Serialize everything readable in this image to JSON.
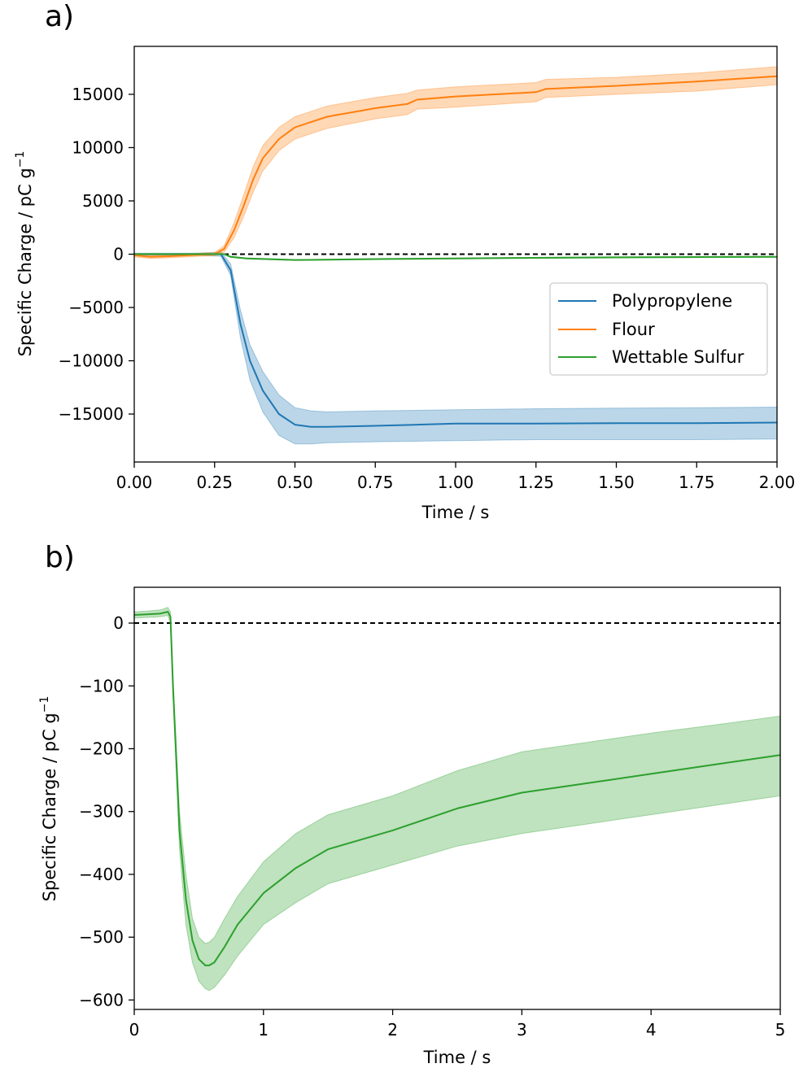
{
  "chart_data": [
    {
      "panel_label": "a)",
      "type": "line",
      "xlabel": "Time / s",
      "ylabel": "Specific Charge / pC g",
      "ylabel_sup": "−1",
      "xlim": [
        0,
        2
      ],
      "ylim": [
        -19500,
        19500
      ],
      "xticks": [
        0,
        0.25,
        0.5,
        0.75,
        1.0,
        1.25,
        1.5,
        1.75,
        2.0
      ],
      "xtick_labels": [
        "0.00",
        "0.25",
        "0.50",
        "0.75",
        "1.00",
        "1.25",
        "1.50",
        "1.75",
        "2.00"
      ],
      "yticks": [
        15000,
        10000,
        5000,
        0,
        -5000,
        -10000,
        -15000
      ],
      "ytick_labels": [
        "15000",
        "10000",
        "5000",
        "0",
        "−5000",
        "−10000",
        "−15000"
      ],
      "reference_line": {
        "y": 0,
        "style": "dashed",
        "color": "#000000"
      },
      "legend": {
        "placement": "center-right"
      },
      "series": [
        {
          "name": "Polypropylene",
          "color": "#1f77b4",
          "x": [
            0,
            0.1,
            0.2,
            0.27,
            0.3,
            0.33,
            0.36,
            0.4,
            0.45,
            0.5,
            0.55,
            0.6,
            0.75,
            1.0,
            1.25,
            1.5,
            1.75,
            2.0
          ],
          "y": [
            0,
            0,
            0,
            0,
            -1500,
            -6500,
            -10000,
            -12800,
            -15000,
            -16000,
            -16200,
            -16200,
            -16100,
            -15900,
            -15900,
            -15850,
            -15850,
            -15800
          ],
          "lower": [
            -100,
            -100,
            -100,
            -200,
            -2000,
            -7800,
            -11800,
            -14800,
            -17000,
            -17800,
            -17800,
            -17700,
            -17600,
            -17500,
            -17400,
            -17400,
            -17400,
            -17350
          ],
          "upper": [
            100,
            100,
            100,
            200,
            -900,
            -5200,
            -8500,
            -11000,
            -13200,
            -14400,
            -14700,
            -14800,
            -14700,
            -14600,
            -14500,
            -14450,
            -14400,
            -14350
          ]
        },
        {
          "name": "Flour",
          "color": "#ff7f0e",
          "x": [
            0,
            0.05,
            0.1,
            0.2,
            0.25,
            0.28,
            0.31,
            0.34,
            0.37,
            0.4,
            0.45,
            0.5,
            0.6,
            0.75,
            0.85,
            0.88,
            1.0,
            1.25,
            1.28,
            1.5,
            1.75,
            2.0
          ],
          "y": [
            -100,
            -250,
            -200,
            -50,
            0,
            500,
            2200,
            4500,
            7000,
            9000,
            10800,
            11900,
            12900,
            13700,
            14100,
            14500,
            14800,
            15200,
            15500,
            15800,
            16200,
            16700
          ],
          "lower": [
            -250,
            -400,
            -350,
            -200,
            -150,
            200,
            1500,
            3500,
            5800,
            7800,
            9700,
            10800,
            11800,
            12700,
            13100,
            13600,
            13800,
            14300,
            14700,
            15000,
            15300,
            15900
          ],
          "upper": [
            50,
            -100,
            -50,
            100,
            150,
            800,
            2900,
            5500,
            8200,
            10200,
            11900,
            12900,
            13900,
            14700,
            15100,
            15400,
            15700,
            16100,
            16400,
            16600,
            17000,
            17600
          ]
        },
        {
          "name": "Wettable Sulfur",
          "color": "#2ca02c",
          "x": [
            0,
            0.28,
            0.3,
            0.35,
            0.5,
            0.6,
            0.75,
            1.0,
            1.25,
            1.5,
            1.75,
            2.0
          ],
          "y": [
            10,
            10,
            -250,
            -400,
            -540,
            -520,
            -460,
            -400,
            -340,
            -300,
            -270,
            -250
          ],
          "lower": [
            0,
            0,
            -300,
            -450,
            -580,
            -560,
            -500,
            -440,
            -380,
            -350,
            -320,
            -300
          ],
          "upper": [
            20,
            20,
            -200,
            -350,
            -500,
            -480,
            -420,
            -360,
            -300,
            -250,
            -220,
            -200
          ]
        }
      ]
    },
    {
      "panel_label": "b)",
      "type": "line",
      "xlabel": "Time / s",
      "ylabel": "Specific Charge / pC g",
      "ylabel_sup": "−1",
      "xlim": [
        0,
        5
      ],
      "ylim": [
        -615,
        57
      ],
      "xticks": [
        0,
        1,
        2,
        3,
        4,
        5
      ],
      "xtick_labels": [
        "0",
        "1",
        "2",
        "3",
        "4",
        "5"
      ],
      "yticks": [
        0,
        -100,
        -200,
        -300,
        -400,
        -500,
        -600
      ],
      "ytick_labels": [
        "0",
        "−100",
        "−200",
        "−300",
        "−400",
        "−500",
        "−600"
      ],
      "reference_line": {
        "y": 0,
        "style": "dashed",
        "color": "#000000"
      },
      "series": [
        {
          "color": "#2ca02c",
          "x": [
            0,
            0.1,
            0.2,
            0.26,
            0.28,
            0.3,
            0.35,
            0.4,
            0.45,
            0.5,
            0.55,
            0.58,
            0.62,
            0.7,
            0.8,
            1.0,
            1.25,
            1.5,
            2.0,
            2.5,
            3.0,
            3.5,
            4.0,
            4.5,
            5.0
          ],
          "y": [
            13,
            14,
            15,
            18,
            10,
            -100,
            -330,
            -440,
            -505,
            -535,
            -545,
            -545,
            -540,
            -515,
            -480,
            -430,
            -390,
            -360,
            -330,
            -295,
            -270,
            -255,
            -240,
            -225,
            -210
          ],
          "lower": [
            8,
            9,
            10,
            12,
            0,
            -115,
            -360,
            -480,
            -540,
            -570,
            -582,
            -585,
            -580,
            -560,
            -530,
            -480,
            -445,
            -415,
            -385,
            -355,
            -335,
            -320,
            -305,
            -290,
            -275
          ],
          "upper": [
            18,
            19,
            21,
            25,
            18,
            -85,
            -300,
            -400,
            -470,
            -500,
            -510,
            -508,
            -500,
            -470,
            -435,
            -380,
            -335,
            -305,
            -275,
            -235,
            -205,
            -190,
            -175,
            -162,
            -148
          ]
        }
      ]
    }
  ]
}
